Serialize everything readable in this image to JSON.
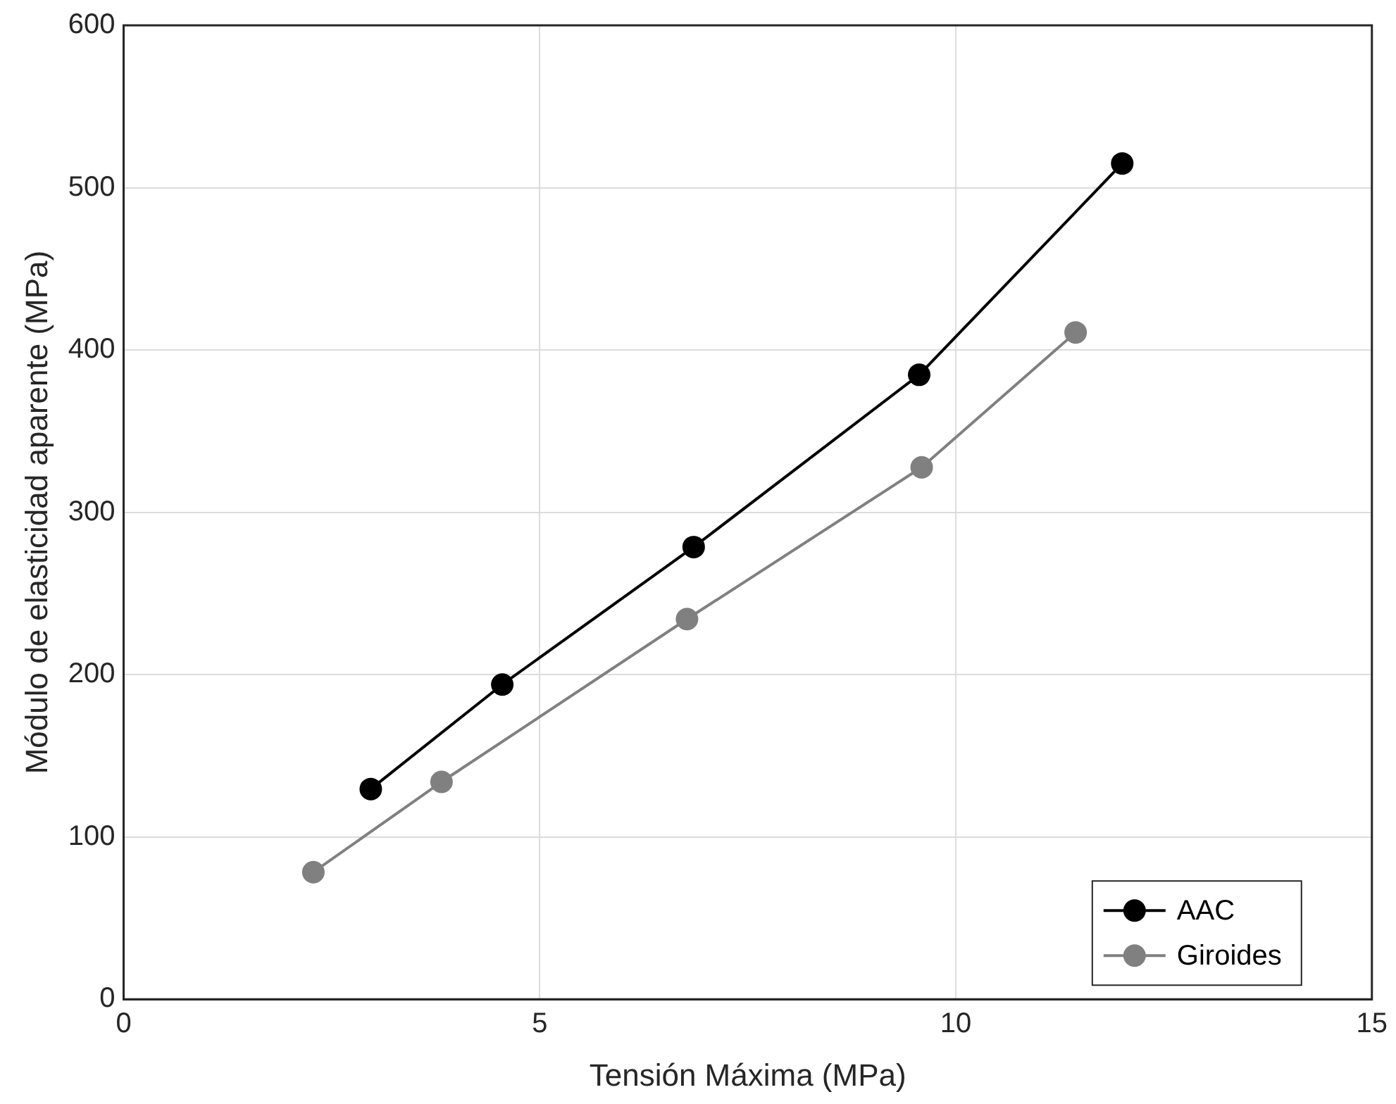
{
  "chart_data": {
    "type": "line",
    "xlabel": "Tensión Máxima (MPa)",
    "ylabel": "Módulo de elasticidad aparente (MPa)",
    "xlim": [
      0,
      15
    ],
    "xticks": [
      0,
      5,
      10,
      15
    ],
    "ylim": [
      0,
      600
    ],
    "yticks": [
      0,
      100,
      200,
      300,
      400,
      500,
      600
    ],
    "grid": true,
    "legend": "bottom right",
    "marker": "circle",
    "line_style": "solid",
    "series": [
      {
        "name": "AAC",
        "color": "#000000",
        "x": [
          2.97,
          4.55,
          6.85,
          9.56,
          12.0
        ],
        "values": [
          129.5,
          193.9,
          278.6,
          384.7,
          514.9
        ]
      },
      {
        "name": "Giroides",
        "color": "#808080",
        "x": [
          2.28,
          3.82,
          6.77,
          9.59,
          11.44
        ],
        "values": [
          78.3,
          133.9,
          234.2,
          327.7,
          410.8
        ]
      }
    ]
  }
}
